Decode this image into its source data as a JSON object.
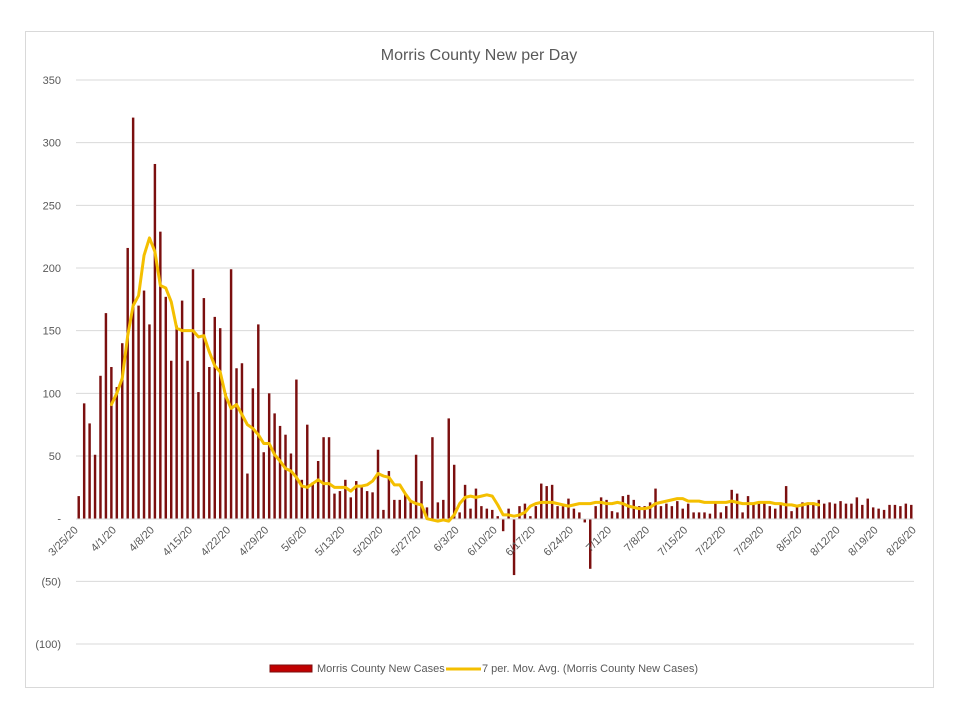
{
  "chart_data": {
    "type": "bar",
    "title": "Morris County New per Day",
    "xlabel": "",
    "ylabel": "",
    "ylim": [
      -100,
      350
    ],
    "yticks": [
      {
        "value": 350,
        "label": "350"
      },
      {
        "value": 300,
        "label": "300"
      },
      {
        "value": 250,
        "label": "250"
      },
      {
        "value": 200,
        "label": "200"
      },
      {
        "value": 150,
        "label": "150"
      },
      {
        "value": 100,
        "label": "100"
      },
      {
        "value": 50,
        "label": "50"
      },
      {
        "value": 0,
        "label": "-"
      },
      {
        "value": -50,
        "label": "(50)"
      },
      {
        "value": -100,
        "label": "(100)"
      }
    ],
    "xticks": [
      "3/25/20",
      "4/1/20",
      "4/8/20",
      "4/15/20",
      "4/22/20",
      "4/29/20",
      "5/6/20",
      "5/13/20",
      "5/20/20",
      "5/27/20",
      "6/3/20",
      "6/10/20",
      "6/17/20",
      "6/24/20",
      "7/1/20",
      "7/8/20",
      "7/15/20",
      "7/22/20",
      "7/29/20",
      "8/5/20",
      "8/12/20",
      "8/19/20",
      "8/26/20"
    ],
    "days_total": 154,
    "grid": true,
    "legend_position": "bottom",
    "series": [
      {
        "name": "Morris County New Cases",
        "type": "bar",
        "color": "#7b0f0f",
        "values": [
          18,
          92,
          76,
          51,
          114,
          164,
          121,
          105,
          140,
          216,
          320,
          170,
          182,
          155,
          283,
          229,
          177,
          126,
          154,
          174,
          126,
          199,
          101,
          176,
          121,
          161,
          152,
          100,
          199,
          120,
          124,
          36,
          104,
          155,
          53,
          100,
          84,
          74,
          67,
          52,
          111,
          31,
          75,
          29,
          46,
          65,
          65,
          20,
          22,
          31,
          17,
          30,
          25,
          22,
          21,
          55,
          7,
          38,
          15,
          15,
          20,
          13,
          51,
          30,
          9,
          65,
          13,
          15,
          80,
          43,
          5,
          27,
          8,
          24,
          10,
          8,
          7,
          2,
          -10,
          8,
          -45,
          10,
          12,
          2,
          10,
          28,
          26,
          27,
          10,
          10,
          16,
          8,
          5,
          -3,
          -40,
          10,
          17,
          15,
          6,
          5,
          18,
          19,
          15,
          10,
          10,
          13,
          24,
          10,
          12,
          10,
          14,
          8,
          12,
          5,
          5,
          5,
          4,
          14,
          5,
          10,
          23,
          20,
          5,
          18,
          12,
          12,
          13,
          10,
          8,
          12,
          26,
          6,
          10,
          13,
          13,
          13,
          15,
          12,
          13,
          12,
          14,
          12,
          12,
          17,
          11,
          16,
          9,
          8,
          7,
          11,
          11,
          10,
          12,
          11
        ],
        "value_start_day": 0
      },
      {
        "name": "7 per. Mov. Avg. (Morris County New Cases)",
        "type": "line",
        "color": "#f4bf00",
        "value_start_day": 6,
        "values": [
          91,
          100,
          112,
          146,
          170,
          178,
          210,
          224,
          213,
          186,
          184,
          173,
          152,
          150,
          150,
          150,
          145,
          146,
          133,
          122,
          117,
          98,
          88,
          91,
          83,
          75,
          72,
          67,
          60,
          60,
          51,
          46,
          40,
          38,
          33,
          26,
          25,
          28,
          31,
          28,
          28,
          25,
          25,
          25,
          22,
          26,
          26,
          27,
          30,
          36,
          34,
          33,
          27,
          27,
          20,
          14,
          12,
          11,
          0,
          -1,
          -2,
          -1,
          -2,
          3,
          12,
          17,
          18,
          17,
          18,
          19,
          18,
          11,
          3,
          3,
          2,
          3,
          5,
          10,
          12,
          13,
          13,
          13,
          12,
          11,
          10,
          11,
          12,
          12,
          12,
          13,
          13,
          12,
          12,
          13,
          12,
          10,
          9,
          8,
          8,
          9,
          12,
          13,
          14,
          15,
          16,
          16,
          14,
          14,
          14,
          13,
          13,
          13,
          13,
          13,
          14,
          13,
          12,
          12,
          12,
          13,
          13,
          13,
          12,
          12,
          11,
          11,
          10,
          11,
          12,
          12,
          11
        ]
      }
    ]
  }
}
